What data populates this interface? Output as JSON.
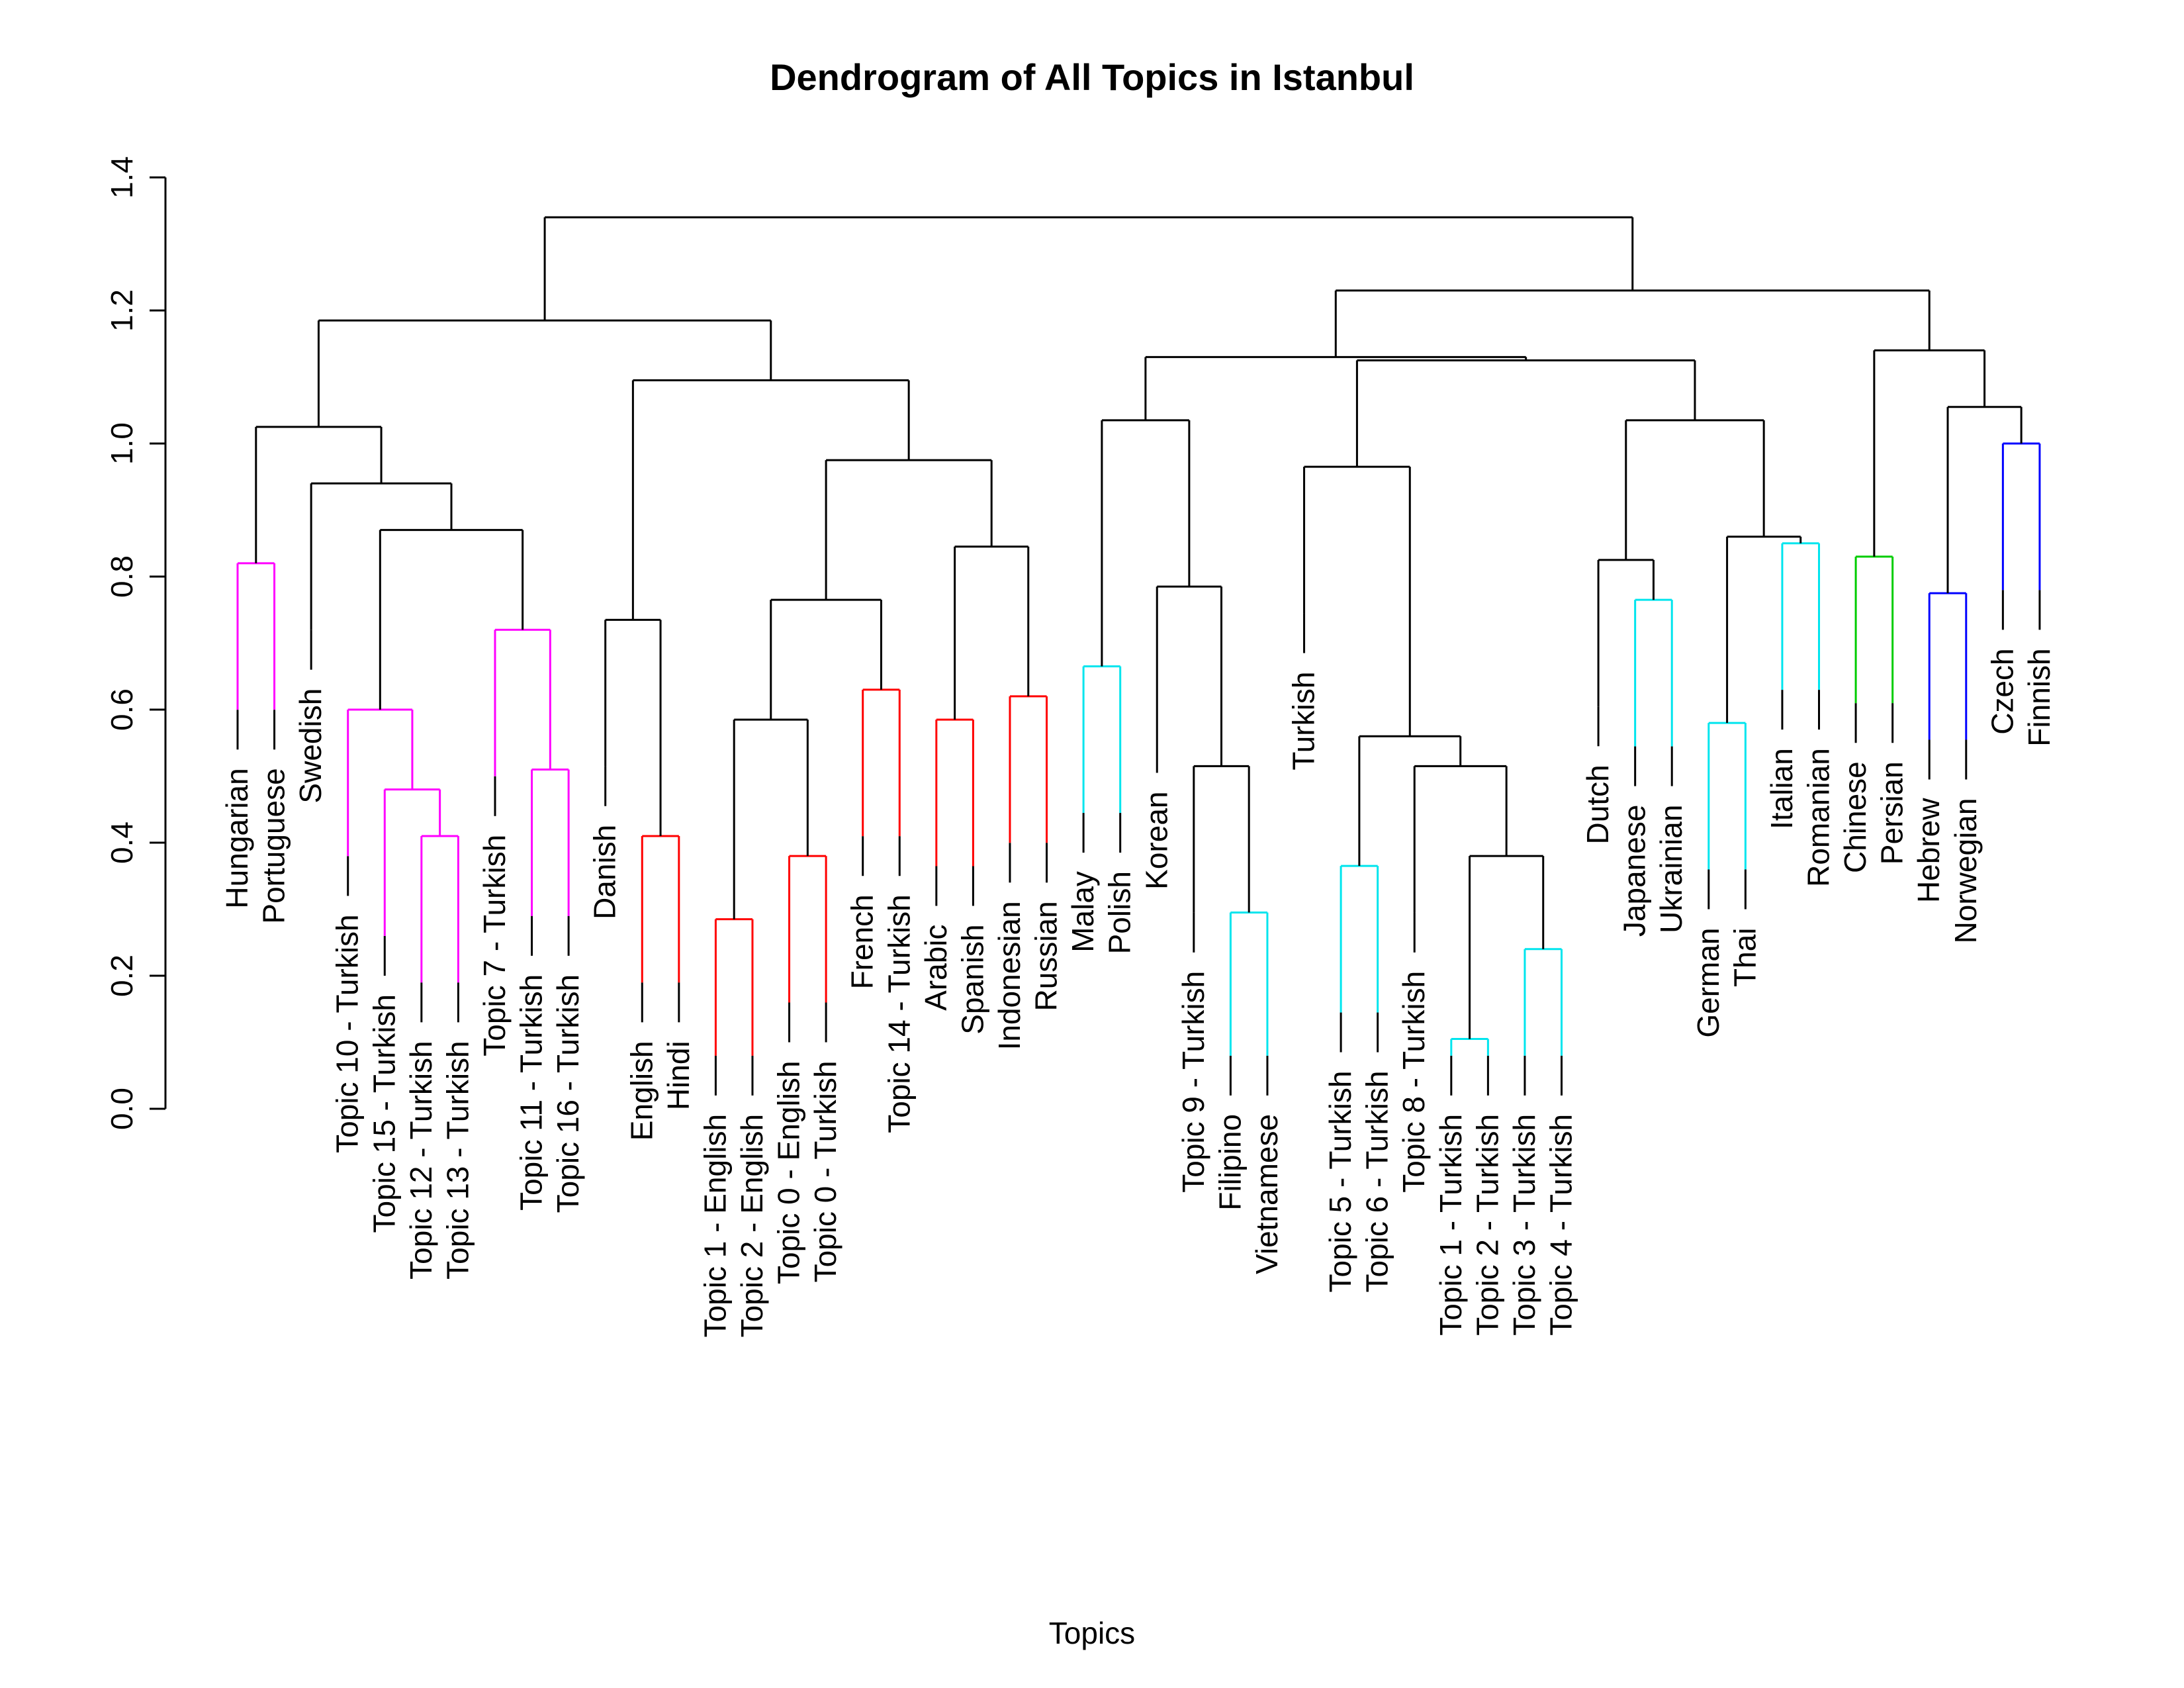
{
  "chart_data": {
    "type": "dendrogram",
    "title": "Dendrogram of All Topics in Istanbul",
    "xlabel": "Topics",
    "ylabel": "",
    "ylim": [
      0,
      1.4
    ],
    "yticks": [
      "0.0",
      "0.2",
      "0.4",
      "0.6",
      "0.8",
      "1.0",
      "1.2",
      "1.4"
    ],
    "cluster_colors": [
      "#ff00ff",
      "#ff0000",
      "#00e5ee",
      "#00cc00",
      "#0000ff"
    ],
    "leaves": [
      "Hungarian",
      "Portuguese",
      "Swedish",
      "Topic 10 - Turkish",
      "Topic 15 - Turkish",
      "Topic 12 - Turkish",
      "Topic 13 - Turkish",
      "Topic 7 - Turkish",
      "Topic 11 - Turkish",
      "Topic 16 - Turkish",
      "Danish",
      "English",
      "Hindi",
      "Topic 1 - English",
      "Topic 2 - English",
      "Topic 0 - English",
      "Topic 0 - Turkish",
      "French",
      "Topic 14 - Turkish",
      "Arabic",
      "Spanish",
      "Indonesian",
      "Russian",
      "Malay",
      "Polish",
      "Korean",
      "Topic 9 - Turkish",
      "Filipino",
      "Vietnamese",
      "Turkish",
      "Topic 5 - Turkish",
      "Topic 6 - Turkish",
      "Topic 8 - Turkish",
      "Topic 1 - Turkish",
      "Topic 2 - Turkish",
      "Topic 3 - Turkish",
      "Topic 4 - Turkish",
      "Dutch",
      "Japanese",
      "Ukrainian",
      "German",
      "Thai",
      "Italian",
      "Romanian",
      "Chinese",
      "Persian",
      "Hebrew",
      "Norwegian",
      "Czech",
      "Finnish"
    ],
    "merges": [
      {
        "a": [
          "L",
          0
        ],
        "b": [
          "L",
          1
        ],
        "h": 0.82,
        "color": "#ff00ff"
      },
      {
        "a": [
          "L",
          5
        ],
        "b": [
          "L",
          6
        ],
        "h": 0.41,
        "color": "#ff00ff"
      },
      {
        "a": [
          "L",
          4
        ],
        "b": [
          "M",
          1
        ],
        "h": 0.48,
        "color": "#ff00ff"
      },
      {
        "a": [
          "L",
          3
        ],
        "b": [
          "M",
          2
        ],
        "h": 0.6,
        "color": "#ff00ff"
      },
      {
        "a": [
          "L",
          8
        ],
        "b": [
          "L",
          9
        ],
        "h": 0.51,
        "color": "#ff00ff"
      },
      {
        "a": [
          "L",
          7
        ],
        "b": [
          "M",
          4
        ],
        "h": 0.72,
        "color": "#ff00ff"
      },
      {
        "a": [
          "M",
          3
        ],
        "b": [
          "M",
          5
        ],
        "h": 0.87,
        "color": "#000000"
      },
      {
        "a": [
          "L",
          2
        ],
        "b": [
          "M",
          6
        ],
        "h": 0.94,
        "color": "#000000"
      },
      {
        "a": [
          "M",
          0
        ],
        "b": [
          "M",
          7
        ],
        "h": 1.025,
        "color": "#000000"
      },
      {
        "a": [
          "L",
          11
        ],
        "b": [
          "L",
          12
        ],
        "h": 0.41,
        "color": "#ff0000"
      },
      {
        "a": [
          "L",
          10
        ],
        "b": [
          "M",
          9
        ],
        "h": 0.735,
        "color": "#000000"
      },
      {
        "a": [
          "L",
          13
        ],
        "b": [
          "L",
          14
        ],
        "h": 0.285,
        "color": "#ff0000"
      },
      {
        "a": [
          "L",
          15
        ],
        "b": [
          "L",
          16
        ],
        "h": 0.38,
        "color": "#ff0000"
      },
      {
        "a": [
          "M",
          11
        ],
        "b": [
          "M",
          12
        ],
        "h": 0.585,
        "color": "#000000"
      },
      {
        "a": [
          "L",
          17
        ],
        "b": [
          "L",
          18
        ],
        "h": 0.63,
        "color": "#ff0000"
      },
      {
        "a": [
          "M",
          13
        ],
        "b": [
          "M",
          14
        ],
        "h": 0.765,
        "color": "#000000"
      },
      {
        "a": [
          "L",
          19
        ],
        "b": [
          "L",
          20
        ],
        "h": 0.585,
        "color": "#ff0000"
      },
      {
        "a": [
          "L",
          21
        ],
        "b": [
          "L",
          22
        ],
        "h": 0.62,
        "color": "#ff0000"
      },
      {
        "a": [
          "M",
          16
        ],
        "b": [
          "M",
          17
        ],
        "h": 0.845,
        "color": "#000000"
      },
      {
        "a": [
          "M",
          15
        ],
        "b": [
          "M",
          18
        ],
        "h": 0.975,
        "color": "#000000"
      },
      {
        "a": [
          "M",
          10
        ],
        "b": [
          "M",
          19
        ],
        "h": 1.095,
        "color": "#000000"
      },
      {
        "a": [
          "M",
          8
        ],
        "b": [
          "M",
          20
        ],
        "h": 1.185,
        "color": "#000000"
      },
      {
        "a": [
          "L",
          23
        ],
        "b": [
          "L",
          24
        ],
        "h": 0.665,
        "color": "#00e5ee"
      },
      {
        "a": [
          "L",
          27
        ],
        "b": [
          "L",
          28
        ],
        "h": 0.295,
        "color": "#00e5ee"
      },
      {
        "a": [
          "L",
          26
        ],
        "b": [
          "M",
          23
        ],
        "h": 0.515,
        "color": "#000000"
      },
      {
        "a": [
          "L",
          25
        ],
        "b": [
          "M",
          24
        ],
        "h": 0.785,
        "color": "#000000"
      },
      {
        "a": [
          "M",
          22
        ],
        "b": [
          "M",
          25
        ],
        "h": 1.035,
        "color": "#000000"
      },
      {
        "a": [
          "L",
          30
        ],
        "b": [
          "L",
          31
        ],
        "h": 0.365,
        "color": "#00e5ee"
      },
      {
        "a": [
          "L",
          33
        ],
        "b": [
          "L",
          34
        ],
        "h": 0.105,
        "color": "#00e5ee"
      },
      {
        "a": [
          "L",
          35
        ],
        "b": [
          "L",
          36
        ],
        "h": 0.24,
        "color": "#00e5ee"
      },
      {
        "a": [
          "M",
          28
        ],
        "b": [
          "M",
          29
        ],
        "h": 0.38,
        "color": "#000000"
      },
      {
        "a": [
          "L",
          32
        ],
        "b": [
          "M",
          30
        ],
        "h": 0.515,
        "color": "#000000"
      },
      {
        "a": [
          "M",
          27
        ],
        "b": [
          "M",
          31
        ],
        "h": 0.56,
        "color": "#000000"
      },
      {
        "a": [
          "L",
          29
        ],
        "b": [
          "M",
          32
        ],
        "h": 0.965,
        "color": "#000000"
      },
      {
        "a": [
          "L",
          38
        ],
        "b": [
          "L",
          39
        ],
        "h": 0.765,
        "color": "#00e5ee"
      },
      {
        "a": [
          "L",
          37
        ],
        "b": [
          "M",
          34
        ],
        "h": 0.825,
        "color": "#000000"
      },
      {
        "a": [
          "L",
          40
        ],
        "b": [
          "L",
          41
        ],
        "h": 0.58,
        "color": "#00e5ee"
      },
      {
        "a": [
          "L",
          42
        ],
        "b": [
          "L",
          43
        ],
        "h": 0.85,
        "color": "#00e5ee"
      },
      {
        "a": [
          "M",
          36
        ],
        "b": [
          "M",
          37
        ],
        "h": 0.86,
        "color": "#000000"
      },
      {
        "a": [
          "M",
          35
        ],
        "b": [
          "M",
          38
        ],
        "h": 1.035,
        "color": "#000000"
      },
      {
        "a": [
          "M",
          33
        ],
        "b": [
          "M",
          39
        ],
        "h": 1.125,
        "color": "#000000"
      },
      {
        "a": [
          "M",
          26
        ],
        "b": [
          "M",
          40
        ],
        "h": 1.13,
        "color": "#000000"
      },
      {
        "a": [
          "L",
          44
        ],
        "b": [
          "L",
          45
        ],
        "h": 0.83,
        "color": "#00cc00"
      },
      {
        "a": [
          "L",
          46
        ],
        "b": [
          "L",
          47
        ],
        "h": 0.775,
        "color": "#0000ff"
      },
      {
        "a": [
          "L",
          48
        ],
        "b": [
          "L",
          49
        ],
        "h": 1.0,
        "color": "#0000ff"
      },
      {
        "a": [
          "M",
          43
        ],
        "b": [
          "M",
          44
        ],
        "h": 1.055,
        "color": "#000000"
      },
      {
        "a": [
          "M",
          42
        ],
        "b": [
          "M",
          45
        ],
        "h": 1.14,
        "color": "#000000"
      },
      {
        "a": [
          "M",
          41
        ],
        "b": [
          "M",
          46
        ],
        "h": 1.23,
        "color": "#000000"
      },
      {
        "a": [
          "M",
          21
        ],
        "b": [
          "M",
          47
        ],
        "h": 1.34,
        "color": "#000000"
      }
    ]
  }
}
